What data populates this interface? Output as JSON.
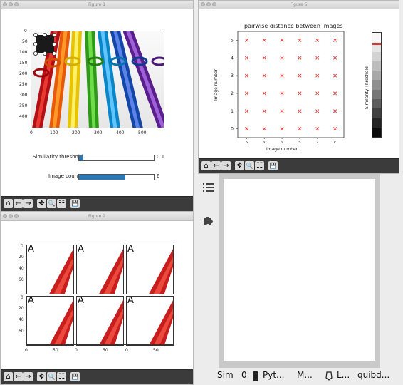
{
  "windows": {
    "fig1": {
      "title": "Figure 1"
    },
    "fig2": {
      "title": "Figure 2"
    },
    "fig5": {
      "title": "Figure 5"
    }
  },
  "toolbar": {
    "home": "⌂",
    "back": "←",
    "forward": "→",
    "pan": "✥",
    "zoom": "🔍",
    "config": "☷",
    "save": "💾"
  },
  "fig1": {
    "image_axis": {
      "yticks": [
        "0",
        "50",
        "100",
        "150",
        "200",
        "250",
        "300",
        "350",
        "400"
      ],
      "xticks": [
        "0",
        "100",
        "200",
        "300",
        "400",
        "500"
      ]
    },
    "sliders": [
      {
        "label": "Similiarity threshold",
        "value": "0.1",
        "fraction": 0.06
      },
      {
        "label": "Image count",
        "value": "6",
        "fraction": 0.62
      }
    ]
  },
  "fig2": {
    "letter": "A",
    "yticks": [
      "0",
      "20",
      "40",
      "60"
    ],
    "xticks": [
      "0",
      "50"
    ]
  },
  "fig5": {
    "chart_data": {
      "type": "scatter",
      "title": "pairwise distance between images",
      "xlabel": "Image number",
      "ylabel": "Image number",
      "x_ticks": [
        "0",
        "1",
        "2",
        "3",
        "4",
        "5"
      ],
      "y_ticks": [
        "0",
        "1",
        "2",
        "3",
        "4",
        "5"
      ],
      "xlim": [
        -0.5,
        5.5
      ],
      "ylim": [
        -0.5,
        5.5
      ],
      "marker": "x",
      "marker_color": "#e8322e",
      "points_grid": [
        0,
        1,
        2,
        3,
        4,
        5
      ],
      "colorbar_label": "Similarity Threshold",
      "colorbar_highlight": 0.9
    }
  },
  "side_panel": {
    "list_icon": "list-icon",
    "puzzle_icon": "puzzle-icon"
  },
  "status_bar": {
    "items": [
      "Sim",
      "0",
      "Pyt...",
      "M...",
      "L...",
      "quibd..."
    ]
  }
}
